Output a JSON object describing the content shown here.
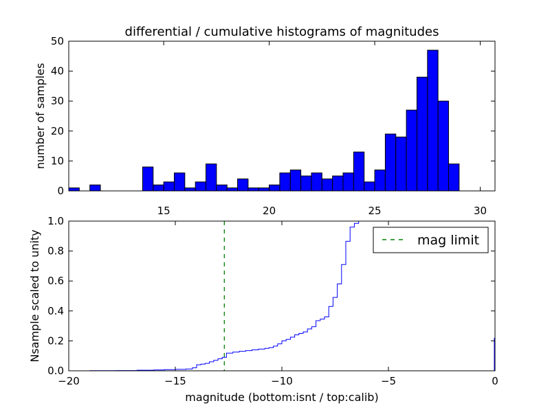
{
  "chart_data": [
    {
      "type": "bar",
      "title": "differential / cumulative histograms of magnitudes",
      "xlabel": "",
      "ylabel": "number of samples",
      "xlim": [
        10.5,
        30.7
      ],
      "ylim": [
        0,
        50
      ],
      "xticks": [
        "15",
        "20",
        "25",
        "30"
      ],
      "yticks": [
        "0",
        "10",
        "20",
        "30",
        "40",
        "50"
      ],
      "bar_color": "#0000ff",
      "bins": [
        {
          "x0": 10.5,
          "x1": 11.0,
          "count": 1
        },
        {
          "x0": 11.0,
          "x1": 11.5,
          "count": 0
        },
        {
          "x0": 11.5,
          "x1": 12.0,
          "count": 2
        },
        {
          "x0": 12.0,
          "x1": 12.5,
          "count": 0
        },
        {
          "x0": 12.5,
          "x1": 13.0,
          "count": 0
        },
        {
          "x0": 13.0,
          "x1": 13.5,
          "count": 0
        },
        {
          "x0": 13.5,
          "x1": 14.0,
          "count": 0
        },
        {
          "x0": 14.0,
          "x1": 14.5,
          "count": 8
        },
        {
          "x0": 14.5,
          "x1": 15.0,
          "count": 2
        },
        {
          "x0": 15.0,
          "x1": 15.5,
          "count": 3
        },
        {
          "x0": 15.5,
          "x1": 16.0,
          "count": 6
        },
        {
          "x0": 16.0,
          "x1": 16.5,
          "count": 1
        },
        {
          "x0": 16.5,
          "x1": 17.0,
          "count": 3
        },
        {
          "x0": 17.0,
          "x1": 17.5,
          "count": 9
        },
        {
          "x0": 17.5,
          "x1": 18.0,
          "count": 2
        },
        {
          "x0": 18.0,
          "x1": 18.5,
          "count": 1
        },
        {
          "x0": 18.5,
          "x1": 19.0,
          "count": 4
        },
        {
          "x0": 19.0,
          "x1": 19.5,
          "count": 1
        },
        {
          "x0": 19.5,
          "x1": 20.0,
          "count": 1
        },
        {
          "x0": 20.0,
          "x1": 20.5,
          "count": 2
        },
        {
          "x0": 20.5,
          "x1": 21.0,
          "count": 6
        },
        {
          "x0": 21.0,
          "x1": 21.5,
          "count": 7
        },
        {
          "x0": 21.5,
          "x1": 22.0,
          "count": 5
        },
        {
          "x0": 22.0,
          "x1": 22.5,
          "count": 6
        },
        {
          "x0": 22.5,
          "x1": 23.0,
          "count": 4
        },
        {
          "x0": 23.0,
          "x1": 23.5,
          "count": 5
        },
        {
          "x0": 23.5,
          "x1": 24.0,
          "count": 6
        },
        {
          "x0": 24.0,
          "x1": 24.5,
          "count": 13
        },
        {
          "x0": 24.5,
          "x1": 25.0,
          "count": 3
        },
        {
          "x0": 25.0,
          "x1": 25.5,
          "count": 7
        },
        {
          "x0": 25.5,
          "x1": 26.0,
          "count": 19
        },
        {
          "x0": 26.0,
          "x1": 26.5,
          "count": 18
        },
        {
          "x0": 26.5,
          "x1": 27.0,
          "count": 27
        },
        {
          "x0": 27.0,
          "x1": 27.5,
          "count": 38
        },
        {
          "x0": 27.5,
          "x1": 28.0,
          "count": 47
        },
        {
          "x0": 28.0,
          "x1": 28.5,
          "count": 30
        },
        {
          "x0": 28.5,
          "x1": 29.0,
          "count": 9
        }
      ]
    },
    {
      "type": "line",
      "title": "",
      "xlabel": "magnitude (bottom:isnt / top:calib)",
      "ylabel": "Nsample scaled to unity",
      "xlim": [
        -20,
        0
      ],
      "ylim": [
        0,
        1
      ],
      "xticks": [
        "−20",
        "−15",
        "−10",
        "−5",
        "0"
      ],
      "yticks": [
        "0.0",
        "0.2",
        "0.4",
        "0.6",
        "0.8",
        "1.0"
      ],
      "grid": false,
      "legend_position": "top-right",
      "series": [
        {
          "name": "",
          "style": "steps",
          "color": "#0000ff",
          "points": [
            [
              -20.0,
              0.0
            ],
            [
              -19.0,
              0.001
            ],
            [
              -17.8,
              0.002
            ],
            [
              -16.8,
              0.004
            ],
            [
              -16.0,
              0.006
            ],
            [
              -15.5,
              0.008
            ],
            [
              -15.0,
              0.01
            ],
            [
              -14.5,
              0.012
            ],
            [
              -14.2,
              0.02
            ],
            [
              -14.0,
              0.04
            ],
            [
              -13.8,
              0.045
            ],
            [
              -13.6,
              0.05
            ],
            [
              -13.4,
              0.06
            ],
            [
              -13.2,
              0.07
            ],
            [
              -13.0,
              0.08
            ],
            [
              -12.8,
              0.09
            ],
            [
              -12.6,
              0.118
            ],
            [
              -12.3,
              0.125
            ],
            [
              -12.0,
              0.13
            ],
            [
              -11.7,
              0.135
            ],
            [
              -11.4,
              0.14
            ],
            [
              -11.1,
              0.145
            ],
            [
              -10.8,
              0.15
            ],
            [
              -10.6,
              0.155
            ],
            [
              -10.4,
              0.165
            ],
            [
              -10.2,
              0.18
            ],
            [
              -10.0,
              0.2
            ],
            [
              -9.8,
              0.21
            ],
            [
              -9.6,
              0.225
            ],
            [
              -9.4,
              0.24
            ],
            [
              -9.2,
              0.25
            ],
            [
              -9.0,
              0.26
            ],
            [
              -8.8,
              0.28
            ],
            [
              -8.6,
              0.295
            ],
            [
              -8.4,
              0.335
            ],
            [
              -8.2,
              0.345
            ],
            [
              -8.0,
              0.36
            ],
            [
              -7.8,
              0.43
            ],
            [
              -7.6,
              0.49
            ],
            [
              -7.4,
              0.58
            ],
            [
              -7.2,
              0.71
            ],
            [
              -7.0,
              0.865
            ],
            [
              -6.8,
              0.96
            ],
            [
              -6.6,
              0.985
            ],
            [
              -6.4,
              1.0
            ],
            [
              -6.2,
              1.0
            ]
          ]
        },
        {
          "name": "mag limit",
          "style": "dashed-vline",
          "color": "#008000",
          "x": -12.7
        }
      ]
    }
  ]
}
